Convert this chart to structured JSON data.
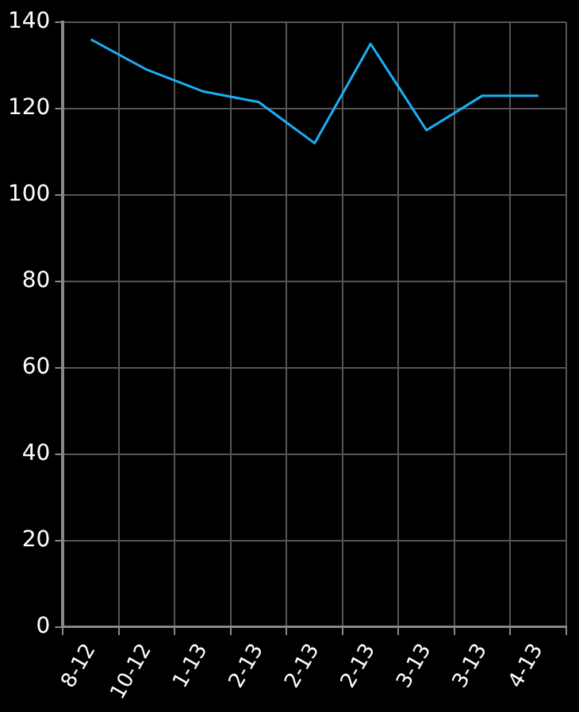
{
  "chart_data": {
    "type": "line",
    "categories": [
      "8-12",
      "10-12",
      "1-13",
      "2-13",
      "2-13",
      "2-13",
      "3-13",
      "3-13",
      "4-13"
    ],
    "series": [
      {
        "color": "#1ab0f5",
        "values": [
          136,
          129,
          124,
          121.5,
          112,
          135,
          115,
          123,
          123
        ]
      }
    ],
    "ylim": [
      0,
      140
    ],
    "yticks": [
      0,
      20,
      40,
      60,
      80,
      100,
      120,
      140
    ],
    "grid": true,
    "legend": false,
    "marker": "none",
    "line_style": "solid"
  }
}
